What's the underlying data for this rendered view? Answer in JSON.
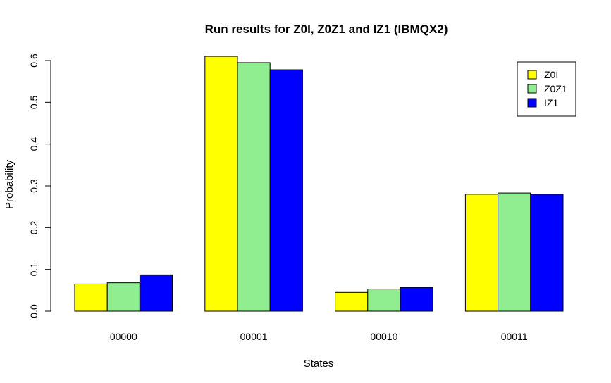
{
  "chart_data": {
    "type": "bar",
    "title": "Run results for Z0I, Z0Z1 and IZ1 (IBMQX2)",
    "xlabel": "States",
    "ylabel": "Probability",
    "categories": [
      "00000",
      "00001",
      "00010",
      "00011"
    ],
    "series": [
      {
        "name": "Z0I",
        "color": "#ffff00",
        "values": [
          0.065,
          0.61,
          0.045,
          0.28
        ]
      },
      {
        "name": "Z0Z1",
        "color": "#90ee90",
        "values": [
          0.068,
          0.595,
          0.053,
          0.283
        ]
      },
      {
        "name": "IZ1",
        "color": "#0000ff",
        "values": [
          0.087,
          0.578,
          0.057,
          0.28
        ]
      }
    ],
    "ylim": [
      0,
      0.6
    ],
    "yticks": [
      0,
      0.1,
      0.2,
      0.3,
      0.4,
      0.5,
      0.6
    ],
    "ytick_labels": [
      "0.0",
      "0.1",
      "0.2",
      "0.3",
      "0.4",
      "0.5",
      "0.6"
    ],
    "legend_placement": "top-right",
    "grid": false
  }
}
